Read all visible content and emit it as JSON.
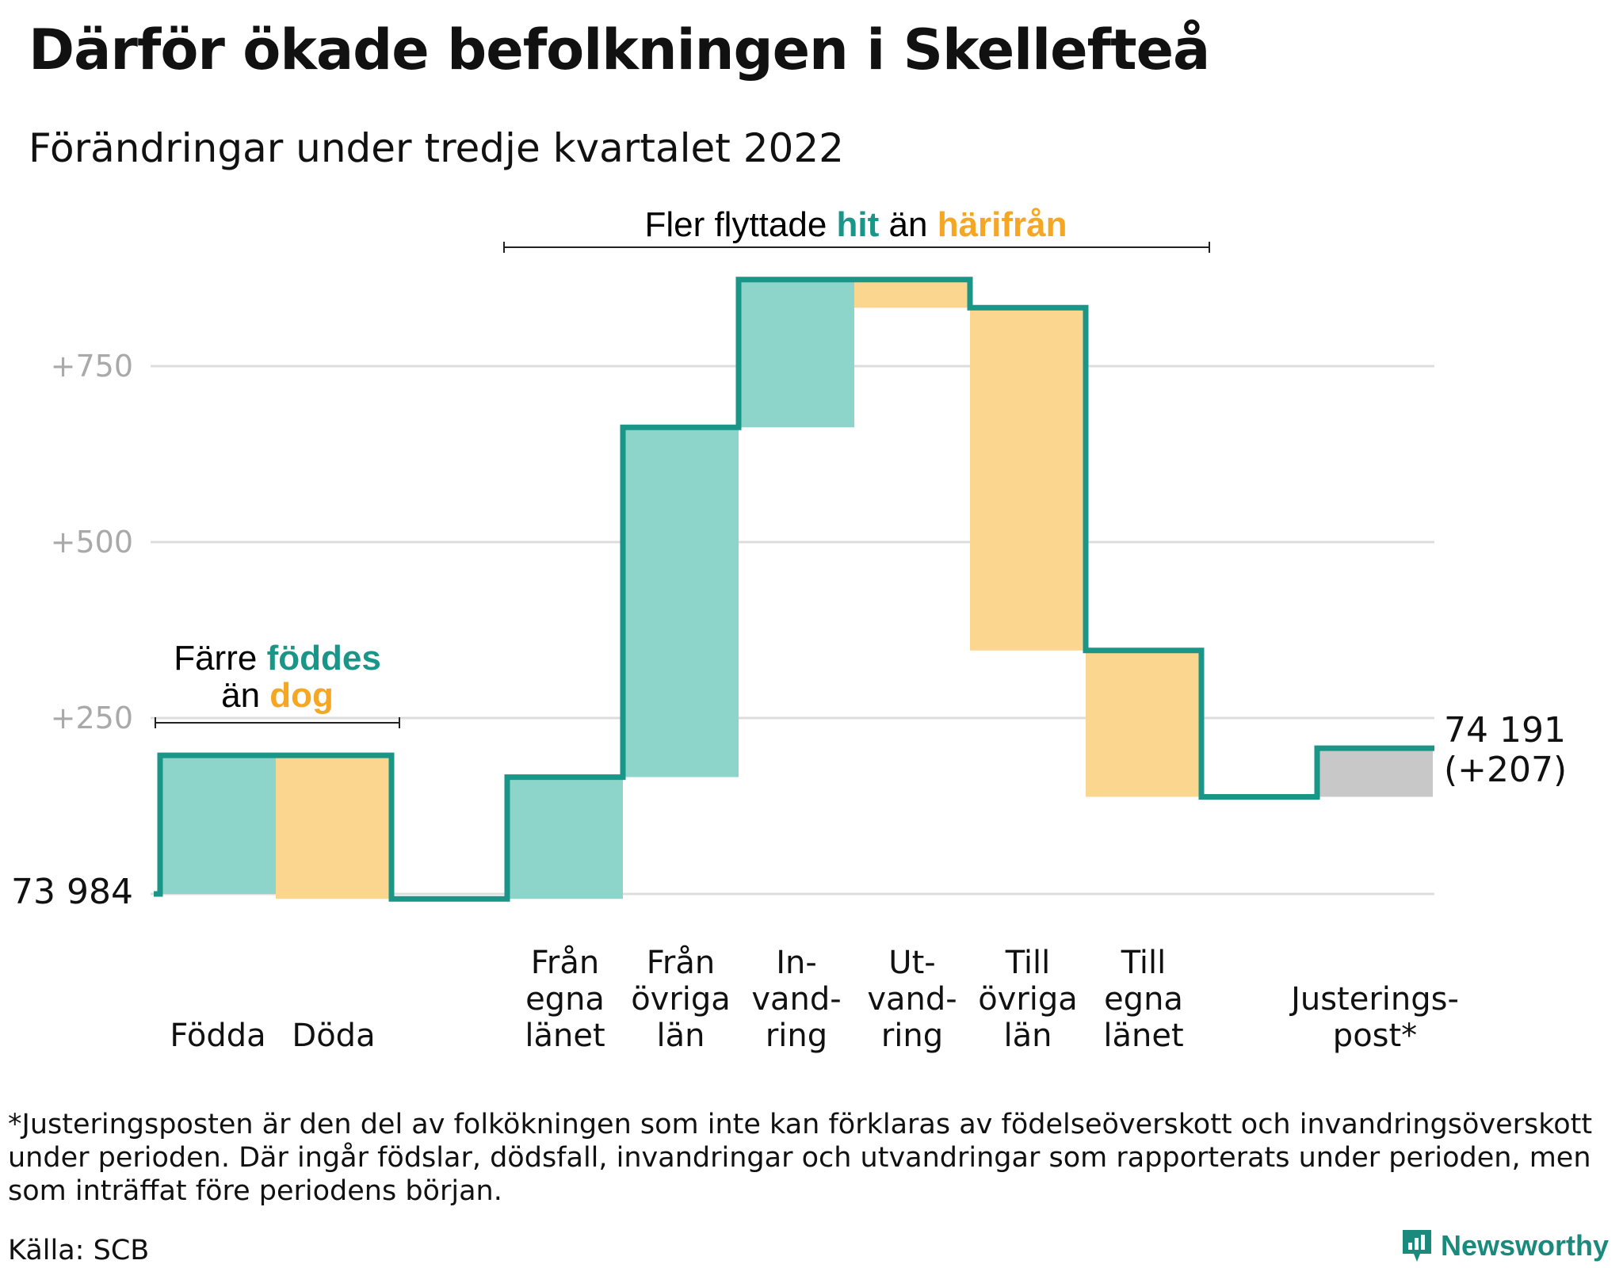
{
  "title": "Därför ökade befolkningen i Skellefteå",
  "subtitle": "Förändringar under tredje kvartalet 2022",
  "annotations": {
    "births_deaths": {
      "line1_a": "Färre ",
      "line1_b": "föddes",
      "line2_a": "än ",
      "line2_b": "dog"
    },
    "migration": {
      "a": "Fler flyttade ",
      "b": "hit",
      "c": " än ",
      "d": "härifrån"
    }
  },
  "chart_data": {
    "type": "bar",
    "subtype": "waterfall",
    "start_label": "73 984",
    "end_label_line1": "74 191",
    "end_label_line2": "(+207)",
    "y_ticks": [
      {
        "value": 250,
        "label": "+250"
      },
      {
        "value": 500,
        "label": "+500"
      },
      {
        "value": 750,
        "label": "+750"
      }
    ],
    "ylim": [
      0,
      870
    ],
    "steps": [
      {
        "label_lines": [
          "Födda"
        ],
        "delta": 197,
        "kind": "gain"
      },
      {
        "label_lines": [
          "Döda"
        ],
        "delta": -204,
        "kind": "loss"
      },
      {
        "label_lines": [],
        "delta": 0,
        "kind": "gap"
      },
      {
        "label_lines": [
          "Från",
          "egna",
          "länet"
        ],
        "delta": 173,
        "kind": "gain"
      },
      {
        "label_lines": [
          "Från",
          "övriga",
          "län"
        ],
        "delta": 497,
        "kind": "gain"
      },
      {
        "label_lines": [
          "In-",
          "vand-",
          "ring"
        ],
        "delta": 210,
        "kind": "gain"
      },
      {
        "label_lines": [
          "Ut-",
          "vand-",
          "ring"
        ],
        "delta": -40,
        "kind": "loss"
      },
      {
        "label_lines": [
          "Till",
          "övriga",
          "län"
        ],
        "delta": -487,
        "kind": "loss"
      },
      {
        "label_lines": [
          "Till",
          "egna",
          "länet"
        ],
        "delta": -208,
        "kind": "loss"
      },
      {
        "label_lines": [],
        "delta": 0,
        "kind": "gap"
      },
      {
        "label_lines": [
          "Justerings-",
          "post*"
        ],
        "delta": 69,
        "kind": "adjust"
      }
    ],
    "colors": {
      "gain": "#8dd4cb",
      "loss": "#fbd68f",
      "adjust": "#c8c8c8",
      "line": "#1a9688",
      "grid": "#dddddd"
    }
  },
  "footnote": "*Justeringsposten är den del av folkökningen som inte kan förklaras av födelseöverskott och invandringsöverskott under perioden. Där ingår födslar, dödsfall, invandringar och utvandringar som rapporterats under perioden, men som inträffat före periodens början.",
  "source": "Källa: SCB",
  "brand": "Newsworthy"
}
